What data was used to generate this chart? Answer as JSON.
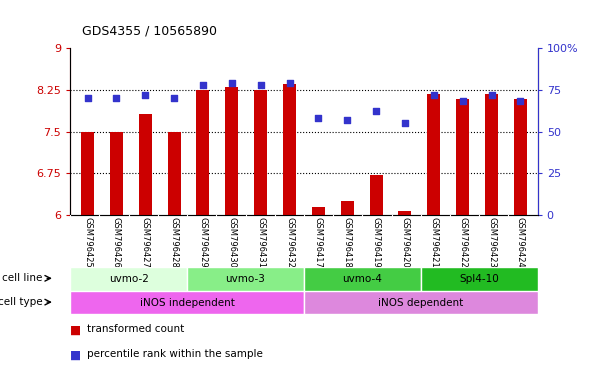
{
  "title": "GDS4355 / 10565890",
  "samples": [
    "GSM796425",
    "GSM796426",
    "GSM796427",
    "GSM796428",
    "GSM796429",
    "GSM796430",
    "GSM796431",
    "GSM796432",
    "GSM796417",
    "GSM796418",
    "GSM796419",
    "GSM796420",
    "GSM796421",
    "GSM796422",
    "GSM796423",
    "GSM796424"
  ],
  "transformed_counts": [
    7.5,
    7.5,
    7.82,
    7.5,
    8.25,
    8.3,
    8.25,
    8.35,
    6.15,
    6.25,
    6.72,
    6.08,
    8.18,
    8.08,
    8.18,
    8.08
  ],
  "percentile_ranks": [
    70,
    70,
    72,
    70,
    78,
    79,
    78,
    79,
    58,
    57,
    62,
    55,
    72,
    68,
    72,
    68
  ],
  "ylim_left": [
    6,
    9
  ],
  "ylim_right": [
    0,
    100
  ],
  "yticks_left": [
    6,
    6.75,
    7.5,
    8.25,
    9
  ],
  "ytick_labels_left": [
    "6",
    "6.75",
    "7.5",
    "8.25",
    "9"
  ],
  "yticks_right": [
    0,
    25,
    50,
    75,
    100
  ],
  "ytick_labels_right": [
    "0",
    "25",
    "50",
    "75",
    "100%"
  ],
  "bar_color": "#cc0000",
  "dot_color": "#3333cc",
  "cell_lines": [
    {
      "label": "uvmo-2",
      "start": 0,
      "end": 4,
      "color": "#ddffdd"
    },
    {
      "label": "uvmo-3",
      "start": 4,
      "end": 8,
      "color": "#88ee88"
    },
    {
      "label": "uvmo-4",
      "start": 8,
      "end": 12,
      "color": "#44cc44"
    },
    {
      "label": "Spl4-10",
      "start": 12,
      "end": 16,
      "color": "#22bb22"
    }
  ],
  "cell_types": [
    {
      "label": "iNOS independent",
      "start": 0,
      "end": 8,
      "color": "#ee66ee"
    },
    {
      "label": "iNOS dependent",
      "start": 8,
      "end": 16,
      "color": "#dd88dd"
    }
  ],
  "cell_line_label": "cell line",
  "cell_type_label": "cell type",
  "legend_red_label": "transformed count",
  "legend_blue_label": "percentile rank within the sample",
  "bg_color": "#ffffff",
  "tick_area_bg": "#cccccc",
  "grid_color": "#000000",
  "bar_width": 0.45
}
